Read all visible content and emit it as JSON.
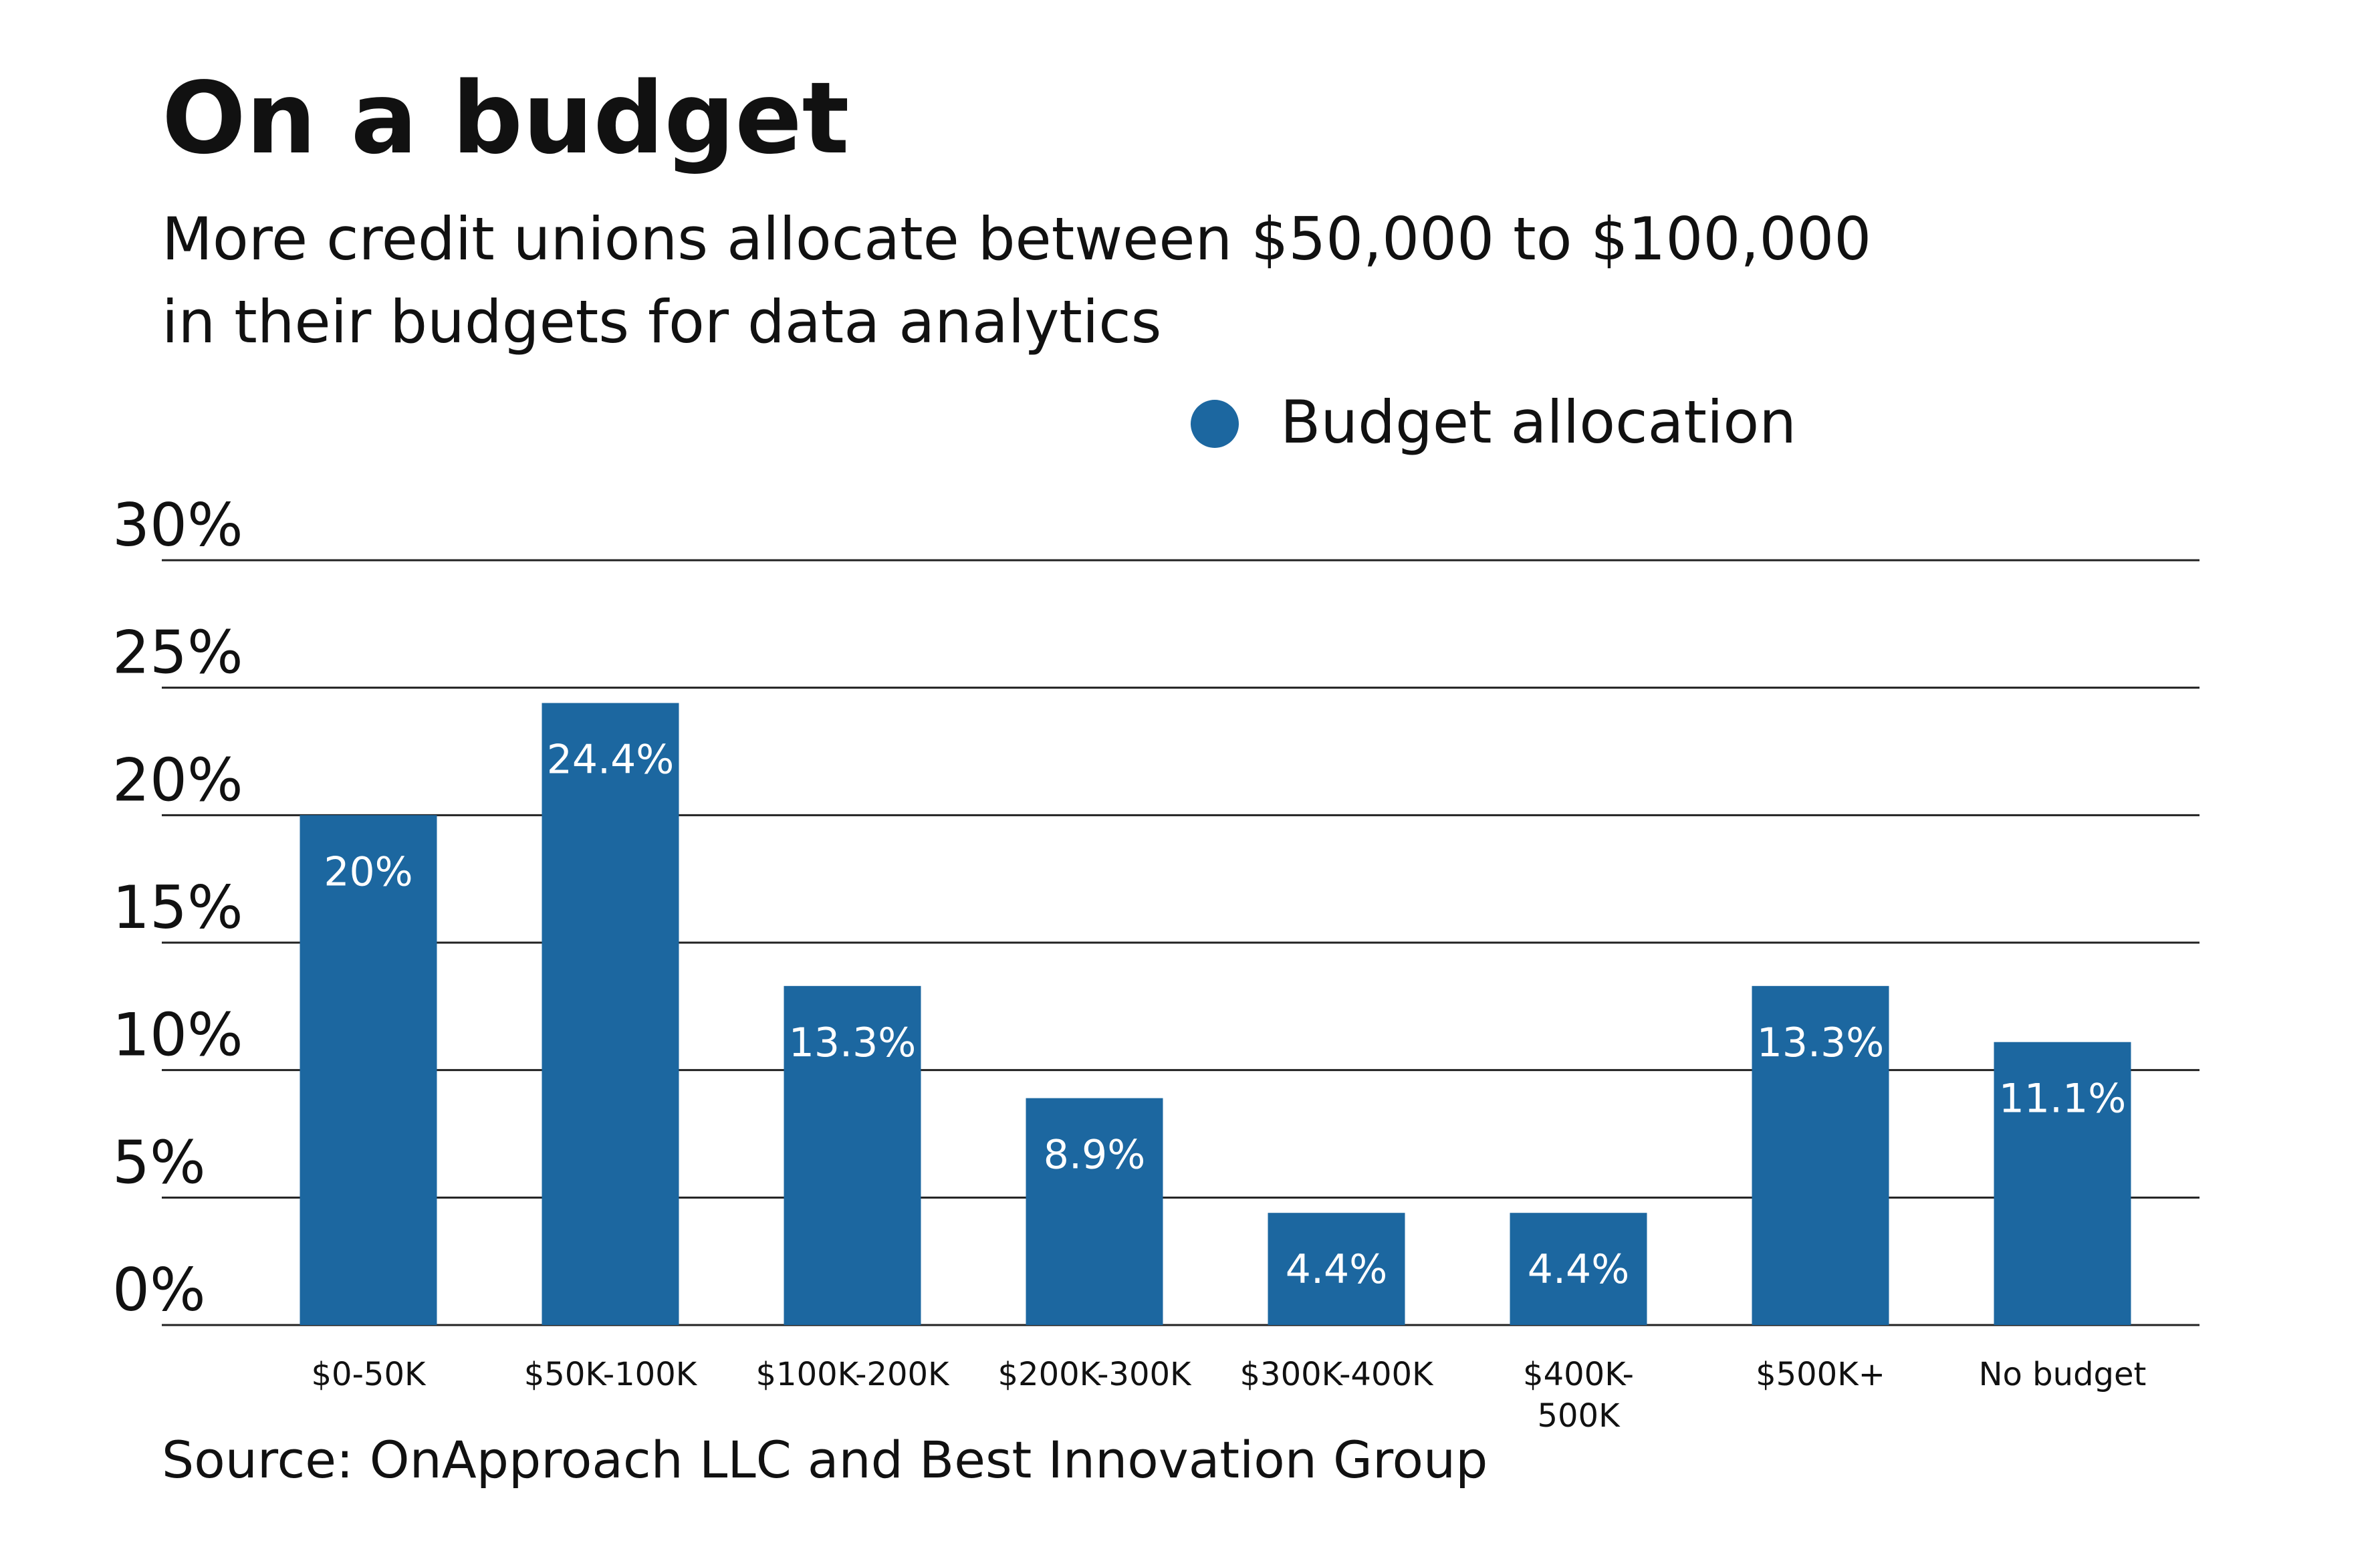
{
  "title": "On a budget",
  "subtitle": [
    "More credit unions allocate between $50,000 to $100,000",
    "in their budgets for data analytics"
  ],
  "legend_label": "Budget allocation",
  "source": "Source: OnApproach LLC and Best Innovation Group",
  "colors": {
    "bar": "#1c67a0",
    "grid": "#222222",
    "text": "#111111",
    "value_label": "#ffffff"
  },
  "chart_data": {
    "type": "bar",
    "categories": [
      [
        "$0-50K"
      ],
      [
        "$50K-100K"
      ],
      [
        "$100K-200K"
      ],
      [
        "$200K-300K"
      ],
      [
        "$300K-400K"
      ],
      [
        "$400K-",
        "500K"
      ],
      [
        "$500K+"
      ],
      [
        "No budget"
      ]
    ],
    "series": [
      {
        "name": "Budget allocation",
        "values": [
          20,
          24.4,
          13.3,
          8.9,
          4.4,
          4.4,
          13.3,
          11.1
        ]
      }
    ],
    "value_labels": [
      "20%",
      "24.4%",
      "13.3%",
      "8.9%",
      "4.4%",
      "4.4%",
      "13.3%",
      "11.1%"
    ],
    "yticks": [
      0,
      5,
      10,
      15,
      20,
      25,
      30
    ],
    "ytick_labels": [
      "0%",
      "5%",
      "10%",
      "15%",
      "20%",
      "25%",
      "30%"
    ],
    "ylim": [
      0,
      30
    ],
    "grid": true,
    "legend_position": "top-right"
  }
}
